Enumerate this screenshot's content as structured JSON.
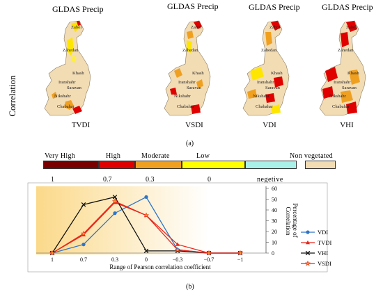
{
  "side_label": "Correlation",
  "maps": [
    {
      "title": "GLDAS Precip",
      "index": "TVDI"
    },
    {
      "title": "GLDAS Precip",
      "index": "VSDI"
    },
    {
      "title": "GLDAS Precip",
      "index": "VDI"
    },
    {
      "title": "GLDAS Precip",
      "index": "VHI"
    }
  ],
  "cities": [
    "Zabol",
    "Zahedan",
    "Khash",
    "Iranshahr",
    "Saravan",
    "Nikshahr",
    "Chabahar"
  ],
  "label_a": "(a)",
  "label_b": "(b)",
  "legend": {
    "classes": [
      {
        "word": "Very High",
        "color": "#7a0000"
      },
      {
        "word": "High",
        "color": "#e00000"
      },
      {
        "word": "Moderate",
        "color": "#f0a020"
      },
      {
        "word": "Low",
        "color": "#ffff00"
      },
      {
        "word": "",
        "color": "#a8f0e8"
      },
      {
        "word": "Non vegetated",
        "color": "#f2dcb4"
      }
    ],
    "numbers": [
      "1",
      "0.7",
      "0.3",
      "0",
      "negetive"
    ]
  },
  "colors": {
    "land": "#f2dcb4",
    "chart_bg_left": "#fbd98a",
    "chart_bg_right": "#ffffff"
  },
  "chart_data": {
    "type": "line",
    "x": [
      "1",
      "0.7",
      "0.3",
      "0",
      "−0.3",
      "−0.7",
      "−1"
    ],
    "xlabel": "Range of Pearson correlation coefficient",
    "ylabel": "Percentage of Correlation",
    "ylim": [
      0,
      60
    ],
    "yticks": [
      "0",
      "10",
      "20",
      "30",
      "40",
      "50",
      "60"
    ],
    "legend_position": "right",
    "series": [
      {
        "name": "VDI",
        "color": "#2e75c8",
        "marker": "circle",
        "values": [
          0,
          8,
          37,
          52,
          3,
          0,
          0
        ]
      },
      {
        "name": "TVDI",
        "color": "#e8261b",
        "marker": "triangle",
        "values": [
          0,
          17,
          47,
          35,
          8,
          0,
          0
        ]
      },
      {
        "name": "VHI",
        "color": "#111111",
        "marker": "x",
        "values": [
          0,
          45,
          52,
          2,
          2,
          0,
          0
        ]
      },
      {
        "name": "VSDI",
        "color": "#e8261b",
        "marker": "star",
        "values": [
          0,
          18,
          48,
          35,
          3,
          0,
          0
        ]
      }
    ]
  }
}
